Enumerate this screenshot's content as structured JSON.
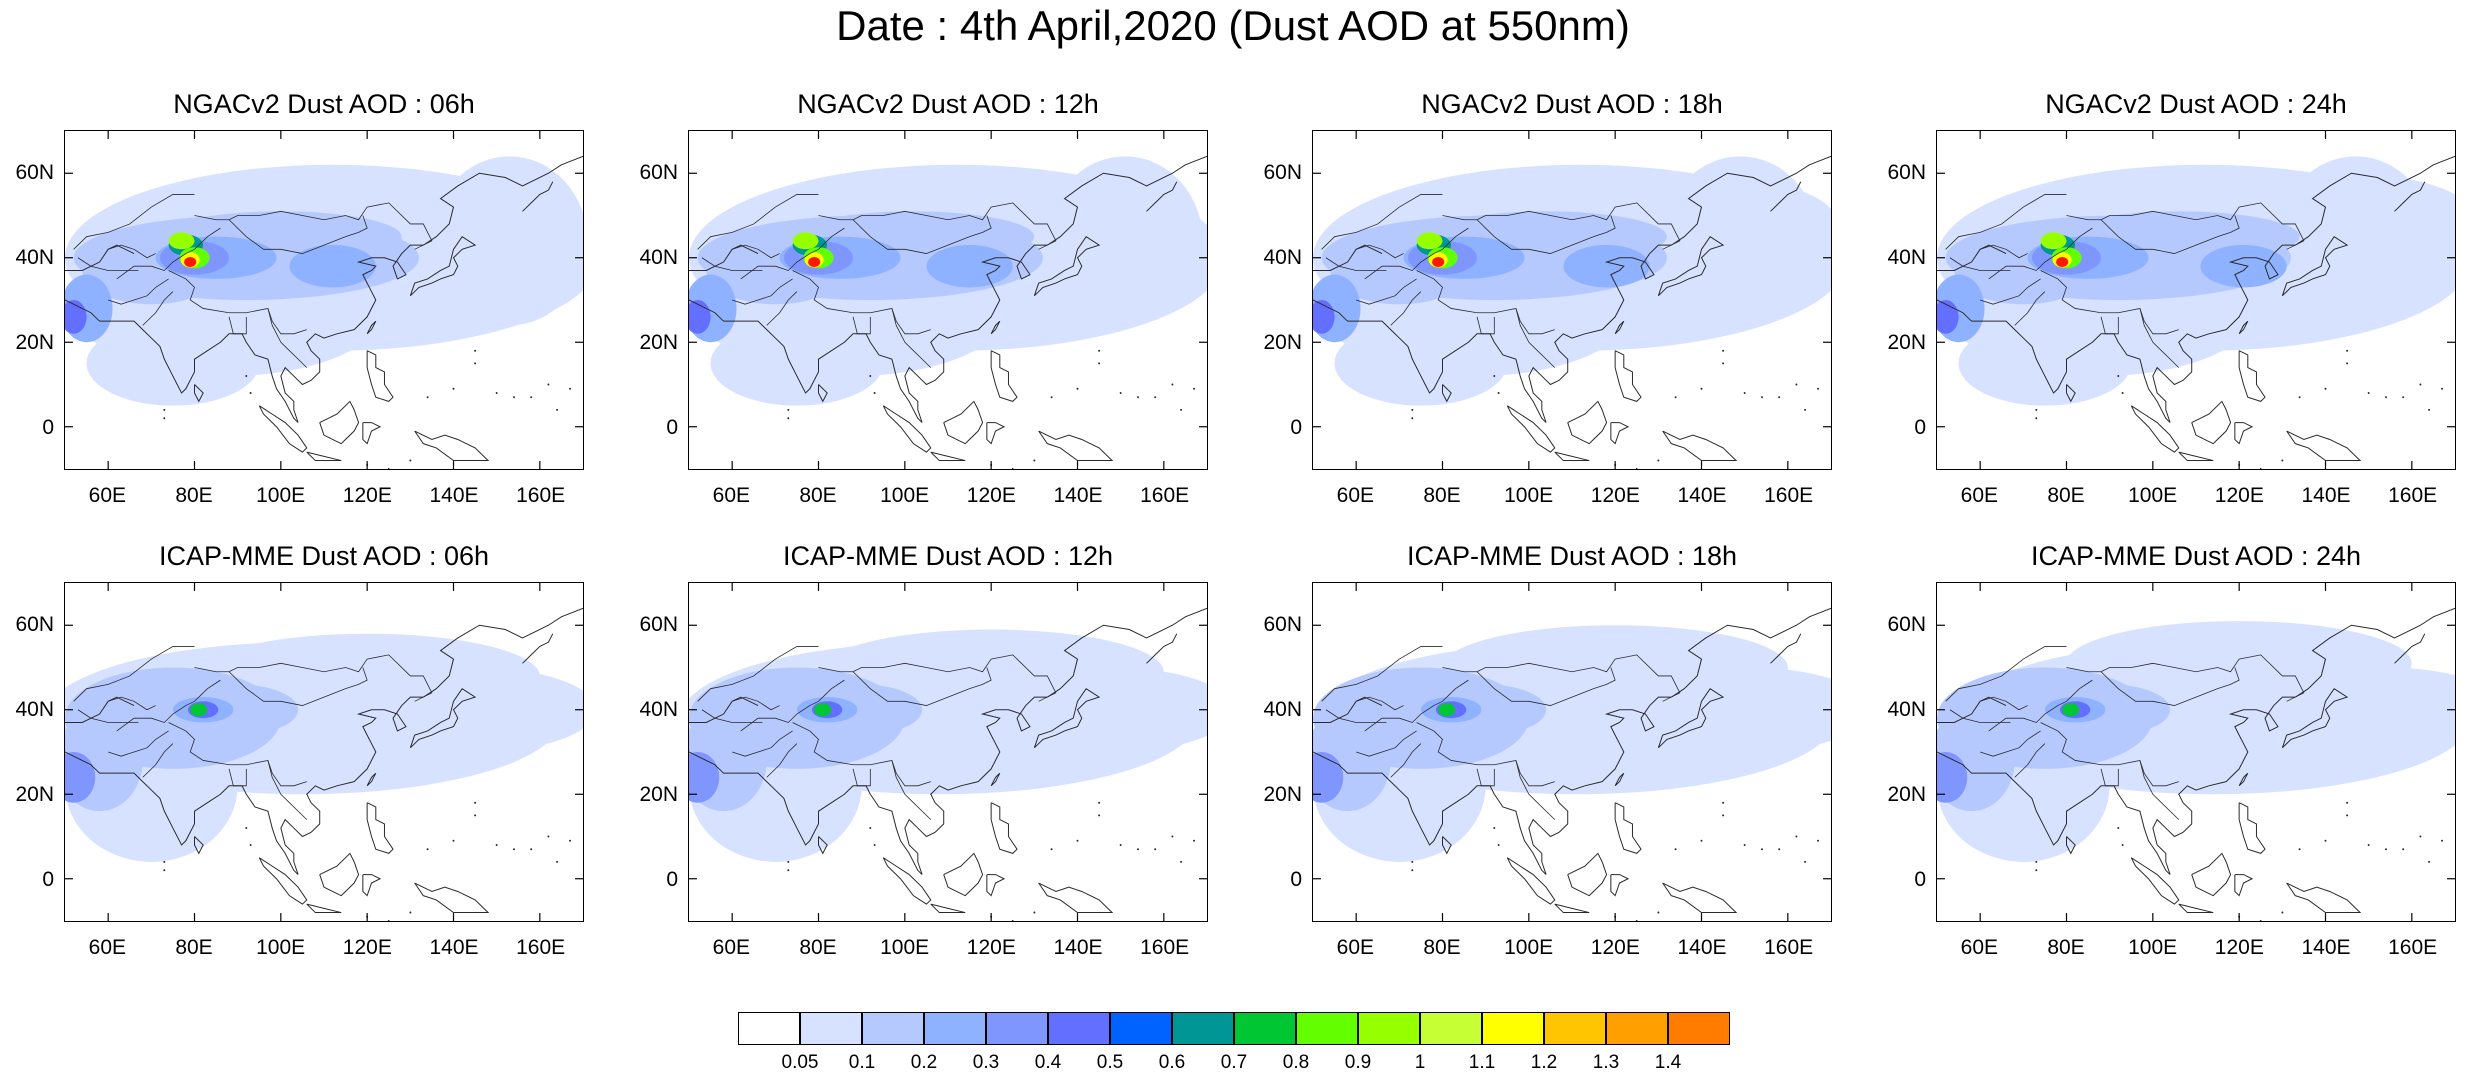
{
  "title": "Date : 4th April,2020 (Dust AOD at 550nm)",
  "colors": {
    "levels": [
      "#ffffff",
      "#d6e2ff",
      "#b5c9ff",
      "#8eb2ff",
      "#7f96ff",
      "#6370ff",
      "#0063ff",
      "#009696",
      "#00c633",
      "#63ff00",
      "#96ff00",
      "#c6ff33",
      "#ffff00",
      "#ffc600",
      "#ffa000",
      "#ff7c00",
      "#ff1900"
    ],
    "coastline": "#2a2a2a",
    "frame": "#000000"
  },
  "colorbar": {
    "labels": [
      "0.05",
      "0.1",
      "0.2",
      "0.3",
      "0.4",
      "0.5",
      "0.6",
      "0.7",
      "0.8",
      "0.9",
      "1",
      "1.1",
      "1.2",
      "1.3",
      "1.4"
    ]
  },
  "panels": [
    {
      "title": "NGACv2 Dust AOD : 06h",
      "model": "NGACv2",
      "lead": "06h"
    },
    {
      "title": "NGACv2 Dust AOD : 12h",
      "model": "NGACv2",
      "lead": "12h"
    },
    {
      "title": "NGACv2 Dust AOD : 18h",
      "model": "NGACv2",
      "lead": "18h"
    },
    {
      "title": "NGACv2 Dust AOD : 24h",
      "model": "NGACv2",
      "lead": "24h"
    },
    {
      "title": "ICAP-MME Dust AOD : 06h",
      "model": "ICAP-MME",
      "lead": "06h"
    },
    {
      "title": "ICAP-MME Dust AOD : 12h",
      "model": "ICAP-MME",
      "lead": "12h"
    },
    {
      "title": "ICAP-MME Dust AOD : 18h",
      "model": "ICAP-MME",
      "lead": "18h"
    },
    {
      "title": "ICAP-MME Dust AOD : 24h",
      "model": "ICAP-MME",
      "lead": "24h"
    }
  ],
  "axes": {
    "lat_labels": [
      "60N",
      "40N",
      "20N",
      "0"
    ],
    "lat_values": [
      60,
      40,
      20,
      0
    ],
    "lon_labels": [
      "60E",
      "80E",
      "100E",
      "120E",
      "140E",
      "160E"
    ],
    "lon_values": [
      60,
      80,
      100,
      120,
      140,
      160
    ],
    "lon_range": [
      50,
      170
    ],
    "lat_range": [
      -10,
      70
    ]
  }
}
